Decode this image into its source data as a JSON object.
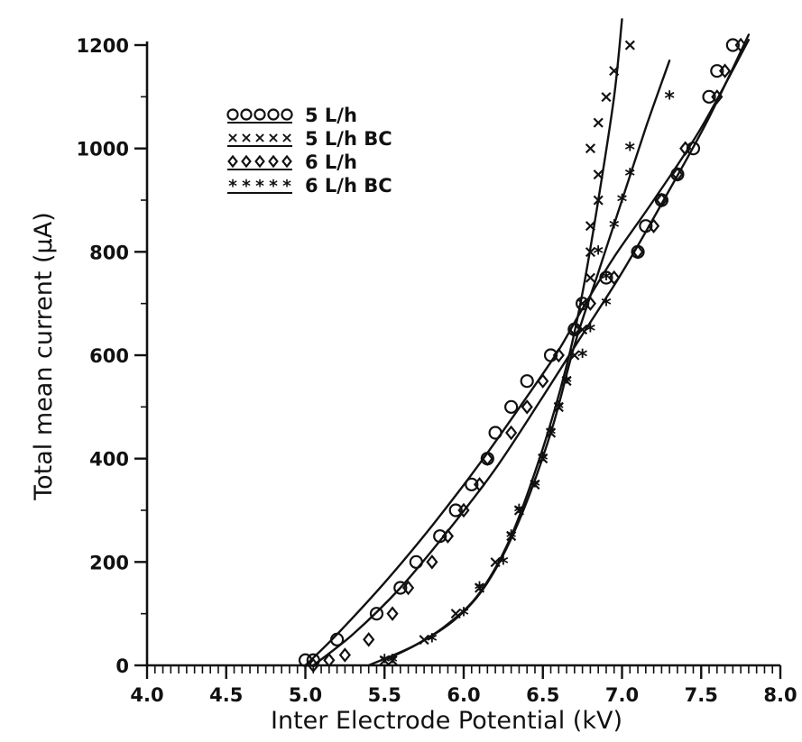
{
  "chart_data": {
    "type": "scatter",
    "xlabel": "Inter Electrode Potential (kV)",
    "ylabel": "Total mean current (μA)",
    "xlim": [
      4.0,
      8.0
    ],
    "ylim": [
      0,
      1200
    ],
    "x_ticks": [
      "4.0",
      "4.5",
      "5.0",
      "5.5",
      "6.0",
      "6.5",
      "7.0",
      "7.5",
      "8.0"
    ],
    "y_ticks": [
      "0",
      "200",
      "400",
      "600",
      "800",
      "1000",
      "1200"
    ],
    "grid": false,
    "legend_placement": "top-left",
    "series": [
      {
        "name": "5 L/h",
        "marker": "circle",
        "points": [
          [
            5.0,
            10
          ],
          [
            5.05,
            10
          ],
          [
            5.2,
            50
          ],
          [
            5.45,
            100
          ],
          [
            5.6,
            150
          ],
          [
            5.7,
            200
          ],
          [
            5.85,
            250
          ],
          [
            5.95,
            300
          ],
          [
            6.05,
            350
          ],
          [
            6.15,
            400
          ],
          [
            6.2,
            450
          ],
          [
            6.3,
            500
          ],
          [
            6.4,
            550
          ],
          [
            6.55,
            600
          ],
          [
            6.7,
            650
          ],
          [
            6.75,
            700
          ],
          [
            6.9,
            750
          ],
          [
            7.1,
            800
          ],
          [
            7.15,
            850
          ],
          [
            7.25,
            900
          ],
          [
            7.35,
            950
          ],
          [
            7.45,
            1000
          ],
          [
            7.55,
            1100
          ],
          [
            7.6,
            1150
          ],
          [
            7.7,
            1200
          ]
        ],
        "fit": [
          [
            5.0,
            0
          ],
          [
            5.2,
            60
          ],
          [
            5.5,
            160
          ],
          [
            5.8,
            270
          ],
          [
            6.1,
            390
          ],
          [
            6.4,
            520
          ],
          [
            6.6,
            610
          ],
          [
            6.75,
            690
          ],
          [
            6.95,
            790
          ],
          [
            7.2,
            900
          ],
          [
            7.5,
            1040
          ],
          [
            7.8,
            1210
          ]
        ]
      },
      {
        "name": "5 L/h BC",
        "marker": "cross",
        "points": [
          [
            5.5,
            10
          ],
          [
            5.55,
            10
          ],
          [
            5.75,
            50
          ],
          [
            5.95,
            100
          ],
          [
            6.1,
            150
          ],
          [
            6.2,
            200
          ],
          [
            6.3,
            250
          ],
          [
            6.35,
            300
          ],
          [
            6.45,
            350
          ],
          [
            6.5,
            400
          ],
          [
            6.55,
            450
          ],
          [
            6.6,
            500
          ],
          [
            6.65,
            550
          ],
          [
            6.7,
            600
          ],
          [
            6.75,
            650
          ],
          [
            6.75,
            700
          ],
          [
            6.8,
            750
          ],
          [
            6.8,
            800
          ],
          [
            6.8,
            850
          ],
          [
            6.85,
            900
          ],
          [
            6.85,
            950
          ],
          [
            6.8,
            1000
          ],
          [
            6.85,
            1050
          ],
          [
            6.9,
            1100
          ],
          [
            6.95,
            1150
          ],
          [
            7.05,
            1200
          ]
        ],
        "fit": [
          [
            5.5,
            10
          ],
          [
            5.7,
            40
          ],
          [
            5.9,
            80
          ],
          [
            6.1,
            140
          ],
          [
            6.3,
            250
          ],
          [
            6.5,
            420
          ],
          [
            6.65,
            580
          ],
          [
            6.75,
            720
          ],
          [
            6.85,
            900
          ],
          [
            6.95,
            1100
          ],
          [
            7.0,
            1250
          ]
        ]
      },
      {
        "name": "6 L/h",
        "marker": "diamond",
        "points": [
          [
            5.05,
            0
          ],
          [
            5.15,
            10
          ],
          [
            5.25,
            20
          ],
          [
            5.4,
            50
          ],
          [
            5.55,
            100
          ],
          [
            5.65,
            150
          ],
          [
            5.8,
            200
          ],
          [
            5.9,
            250
          ],
          [
            6.0,
            300
          ],
          [
            6.1,
            350
          ],
          [
            6.15,
            400
          ],
          [
            6.3,
            450
          ],
          [
            6.4,
            500
          ],
          [
            6.5,
            550
          ],
          [
            6.6,
            600
          ],
          [
            6.7,
            650
          ],
          [
            6.8,
            700
          ],
          [
            6.95,
            750
          ],
          [
            7.1,
            800
          ],
          [
            7.2,
            850
          ],
          [
            7.25,
            900
          ],
          [
            7.35,
            950
          ],
          [
            7.4,
            1000
          ],
          [
            7.6,
            1100
          ],
          [
            7.65,
            1150
          ],
          [
            7.75,
            1200
          ]
        ],
        "fit": [
          [
            5.05,
            0
          ],
          [
            5.3,
            60
          ],
          [
            5.6,
            150
          ],
          [
            5.9,
            260
          ],
          [
            6.2,
            380
          ],
          [
            6.5,
            520
          ],
          [
            6.75,
            640
          ],
          [
            7.0,
            760
          ],
          [
            7.3,
            920
          ],
          [
            7.55,
            1060
          ],
          [
            7.8,
            1220
          ]
        ]
      },
      {
        "name": "6 L/h BC",
        "marker": "star",
        "points": [
          [
            5.5,
            10
          ],
          [
            5.55,
            10
          ],
          [
            5.8,
            50
          ],
          [
            6.0,
            100
          ],
          [
            6.1,
            150
          ],
          [
            6.25,
            200
          ],
          [
            6.3,
            250
          ],
          [
            6.35,
            300
          ],
          [
            6.45,
            350
          ],
          [
            6.5,
            400
          ],
          [
            6.55,
            450
          ],
          [
            6.6,
            500
          ],
          [
            6.65,
            550
          ],
          [
            6.75,
            600
          ],
          [
            6.8,
            650
          ],
          [
            6.9,
            700
          ],
          [
            6.9,
            750
          ],
          [
            6.85,
            800
          ],
          [
            6.95,
            850
          ],
          [
            7.0,
            900
          ],
          [
            7.05,
            950
          ],
          [
            7.05,
            1000
          ],
          [
            7.3,
            1100
          ]
        ],
        "fit": [
          [
            5.4,
            0
          ],
          [
            5.7,
            40
          ],
          [
            5.95,
            90
          ],
          [
            6.15,
            160
          ],
          [
            6.35,
            280
          ],
          [
            6.55,
            450
          ],
          [
            6.7,
            620
          ],
          [
            6.85,
            760
          ],
          [
            7.0,
            900
          ],
          [
            7.15,
            1040
          ],
          [
            7.3,
            1170
          ]
        ]
      }
    ]
  }
}
